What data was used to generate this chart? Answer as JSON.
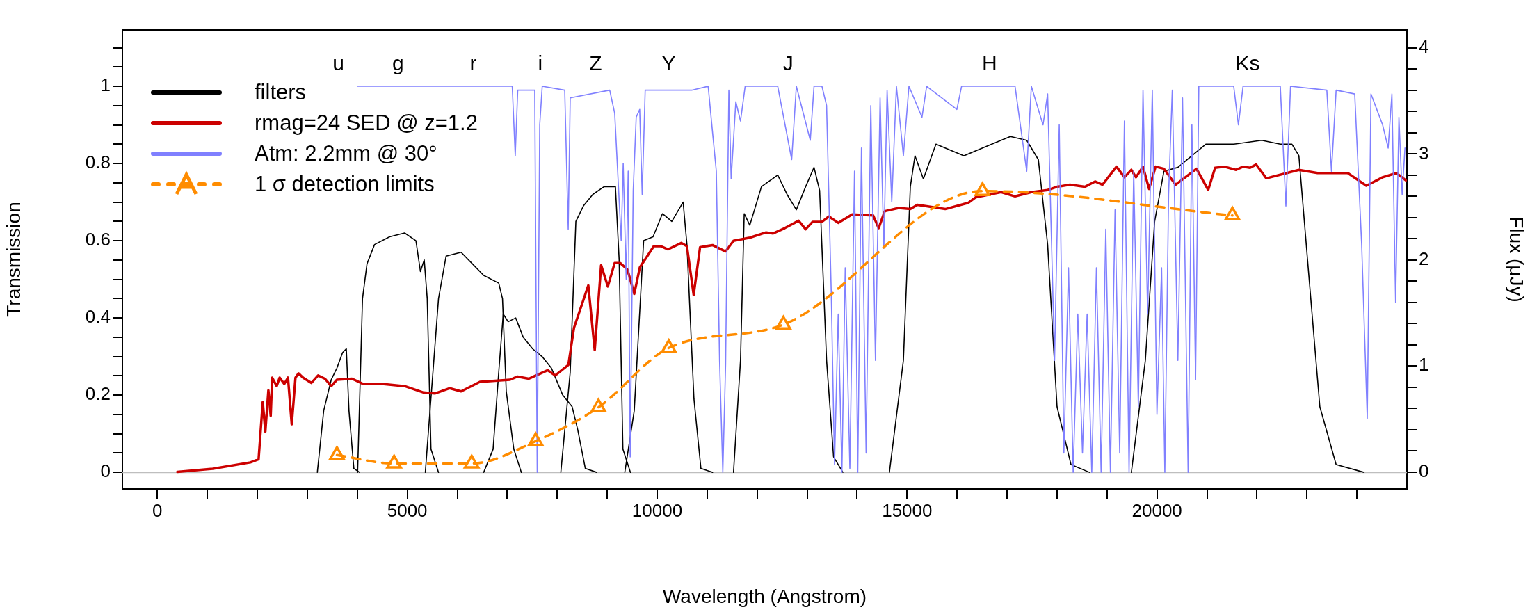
{
  "chart_data": {
    "type": "line",
    "xlabel": "Wavelength (Angstrom)",
    "ylabel": "Transmission",
    "y2label": "Flux (μJy)",
    "xlim": [
      -700,
      25000
    ],
    "xticks": [
      0,
      {
        "value": 1000,
        "label": null
      },
      {
        "value": 2000,
        "label": null
      },
      {
        "value": 3000,
        "label": null
      },
      {
        "value": 4000,
        "label": null
      },
      5000,
      {
        "value": 6000,
        "label": null
      },
      {
        "value": 7000,
        "label": null
      },
      {
        "value": 8000,
        "label": null
      },
      {
        "value": 9000,
        "label": null
      },
      10000,
      {
        "value": 11000,
        "label": null
      },
      {
        "value": 12000,
        "label": null
      },
      {
        "value": 13000,
        "label": null
      },
      {
        "value": 14000,
        "label": null
      },
      15000,
      {
        "value": 16000,
        "label": null
      },
      {
        "value": 17000,
        "label": null
      },
      {
        "value": 18000,
        "label": null
      },
      {
        "value": 19000,
        "label": null
      },
      20000,
      {
        "value": 21000,
        "label": null
      },
      {
        "value": 22000,
        "label": null
      },
      {
        "value": 23000,
        "label": null
      },
      {
        "value": 24000,
        "label": null
      }
    ],
    "ylim": [
      -0.043,
      1.146
    ],
    "yticks": [
      0,
      {
        "value": 0.05,
        "label": null
      },
      {
        "value": 0.1,
        "label": null
      },
      {
        "value": 0.15,
        "label": null
      },
      0.2,
      {
        "value": 0.25,
        "label": null
      },
      {
        "value": 0.3,
        "label": null
      },
      {
        "value": 0.35,
        "label": null
      },
      0.4,
      {
        "value": 0.45,
        "label": null
      },
      {
        "value": 0.5,
        "label": null
      },
      {
        "value": 0.55,
        "label": null
      },
      0.6,
      {
        "value": 0.65,
        "label": null
      },
      {
        "value": 0.7,
        "label": null
      },
      {
        "value": 0.75,
        "label": null
      },
      0.8,
      {
        "value": 0.85,
        "label": null
      },
      {
        "value": 0.9,
        "label": null
      },
      {
        "value": 0.95,
        "label": null
      },
      1,
      {
        "value": 1.05,
        "label": null
      },
      {
        "value": 1.1,
        "label": null
      }
    ],
    "y2lim": [
      -0.16,
      4.17
    ],
    "y2ticks": [
      0,
      {
        "value": 0.2,
        "label": null
      },
      {
        "value": 0.4,
        "label": null
      },
      {
        "value": 0.6,
        "label": null
      },
      {
        "value": 0.8,
        "label": null
      },
      1,
      {
        "value": 1.2,
        "label": null
      },
      {
        "value": 1.4,
        "label": null
      },
      {
        "value": 1.6,
        "label": null
      },
      {
        "value": 1.8,
        "label": null
      },
      2,
      {
        "value": 2.2,
        "label": null
      },
      {
        "value": 2.4,
        "label": null
      },
      {
        "value": 2.6,
        "label": null
      },
      {
        "value": 2.8,
        "label": null
      },
      3,
      {
        "value": 3.2,
        "label": null
      },
      {
        "value": 3.4,
        "label": null
      },
      {
        "value": 3.6,
        "label": null
      },
      {
        "value": 3.8,
        "label": null
      },
      4
    ],
    "grid": false,
    "legend": "top left",
    "ref_lines": [
      {
        "axis": "y",
        "value": 0,
        "color": "#bebebe"
      }
    ],
    "annotations": [
      "u",
      "g",
      "r",
      "i",
      "Z",
      "Y",
      "J",
      "H",
      "Ks"
    ],
    "series": [
      {
        "name": "filters",
        "color": "#000000",
        "marker": "none",
        "line_style": "solid",
        "x": [
          3200,
          3328,
          3479,
          3592,
          3705,
          3780,
          3833,
          3931,
          4044
        ],
        "values": [
          0,
          0.16,
          0.24,
          0.27,
          0.31,
          0.32,
          0.16,
          0.01,
          0
        ]
      },
      {
        "color": "#000000",
        "marker": "none",
        "line_style": "solid",
        "x": [
          4006,
          4104,
          4194,
          4345,
          4646,
          4947,
          5173,
          5263,
          5339,
          5399,
          5474,
          5625
        ],
        "values": [
          0,
          0.45,
          0.54,
          0.59,
          0.61,
          0.62,
          0.6,
          0.52,
          0.55,
          0.45,
          0.06,
          0
        ]
      },
      {
        "color": "#000000",
        "marker": "none",
        "line_style": "solid",
        "x": [
          5361,
          5625,
          5776,
          6077,
          6303,
          6529,
          6830,
          6905,
          6980,
          7131,
          7282
        ],
        "values": [
          0,
          0.45,
          0.56,
          0.57,
          0.54,
          0.51,
          0.49,
          0.45,
          0.21,
          0.06,
          0
        ]
      },
      {
        "color": "#000000",
        "marker": "none",
        "line_style": "solid",
        "x": [
          6529,
          6717,
          6830,
          6920,
          7018,
          7169,
          7319,
          7507,
          7696,
          7884,
          8110,
          8298,
          8411,
          8562,
          8788
        ],
        "values": [
          0,
          0.06,
          0.26,
          0.41,
          0.39,
          0.4,
          0.35,
          0.32,
          0.3,
          0.27,
          0.2,
          0.17,
          0.11,
          0.01,
          0
        ]
      },
      {
        "color": "#000000",
        "marker": "none",
        "line_style": "solid",
        "x": [
          8072,
          8260,
          8373,
          8524,
          8712,
          8938,
          9164,
          9239,
          9314,
          9465
        ],
        "values": [
          0,
          0.26,
          0.65,
          0.69,
          0.72,
          0.74,
          0.74,
          0.55,
          0.06,
          0
        ]
      },
      {
        "color": "#000000",
        "marker": "none",
        "line_style": "solid",
        "x": [
          9352,
          9541,
          9729,
          9917,
          10105,
          10293,
          10519,
          10595,
          10736,
          10875,
          11108
        ],
        "values": [
          0,
          0.16,
          0.6,
          0.61,
          0.67,
          0.65,
          0.7,
          0.59,
          0.19,
          0.01,
          0
        ]
      },
      {
        "color": "#000000",
        "marker": "none",
        "line_style": "solid",
        "x": [
          11527,
          11667,
          11741,
          11853,
          12086,
          12412,
          12598,
          12784,
          12970,
          13138,
          13250,
          13389,
          13529,
          13715
        ],
        "values": [
          0,
          0.29,
          0.67,
          0.64,
          0.74,
          0.77,
          0.72,
          0.68,
          0.74,
          0.79,
          0.73,
          0.29,
          0.04,
          0
        ]
      },
      {
        "color": "#000000",
        "marker": "none",
        "line_style": "solid",
        "x": [
          14646,
          14926,
          15065,
          15158,
          15326,
          15577,
          16136,
          16694,
          17067,
          17393,
          17626,
          17812,
          18000,
          18279,
          18649
        ],
        "values": [
          0,
          0.29,
          0.74,
          0.82,
          0.76,
          0.85,
          0.82,
          0.85,
          0.87,
          0.86,
          0.81,
          0.59,
          0.17,
          0.02,
          0
        ]
      },
      {
        "color": "#000000",
        "marker": "none",
        "line_style": "solid",
        "x": [
          19487,
          19767,
          19953,
          20139,
          20418,
          20698,
          20977,
          21535,
          22094,
          22467,
          22700,
          22839,
          23025,
          23258,
          23584,
          24142
        ],
        "values": [
          0,
          0.29,
          0.65,
          0.78,
          0.79,
          0.82,
          0.85,
          0.85,
          0.86,
          0.85,
          0.85,
          0.82,
          0.53,
          0.17,
          0.02,
          0
        ]
      },
      {
        "name": "rmag=24 SED @ z=1.2",
        "axis": "y2",
        "color": "#cc0000",
        "marker": "none",
        "line_style": "solid",
        "x": [
          400,
          1107,
          1860,
          2025,
          2108,
          2160,
          2221,
          2267,
          2297,
          2387,
          2447,
          2538,
          2613,
          2688,
          2763,
          2824,
          2914,
          3080,
          3215,
          3351,
          3479,
          3592,
          3893,
          4119,
          4495,
          4947,
          5324,
          5550,
          5851,
          6077,
          6453,
          7056,
          7206,
          7432,
          7808,
          7959,
          8223,
          8336,
          8622,
          8750,
          8878,
          9013,
          9149,
          9262,
          9405,
          9541,
          9653,
          9932,
          10067,
          10218,
          10482,
          10595,
          10730,
          10858,
          11108,
          11369,
          11527,
          11853,
          12179,
          12319,
          12551,
          12830,
          12970,
          13110,
          13296,
          13436,
          13622,
          13901,
          14320,
          14432,
          14553,
          14832,
          15065,
          15205,
          15763,
          16229,
          16369,
          16881,
          17160,
          17486,
          17812,
          18000,
          18258,
          18556,
          18761,
          18910,
          19190,
          19348,
          19487,
          19580,
          19720,
          19841,
          19972,
          20139,
          20372,
          20791,
          21024,
          21163,
          21350,
          21582,
          21722,
          21862,
          21983,
          22187,
          22839,
          23211,
          23816,
          24188,
          24514,
          24793,
          24980
        ],
        "values": [
          0,
          0.03,
          0.09,
          0.12,
          0.66,
          0.38,
          0.77,
          0.53,
          0.89,
          0.81,
          0.89,
          0.83,
          0.89,
          0.45,
          0.89,
          0.93,
          0.89,
          0.84,
          0.91,
          0.88,
          0.81,
          0.87,
          0.88,
          0.83,
          0.83,
          0.81,
          0.75,
          0.74,
          0.79,
          0.76,
          0.85,
          0.87,
          0.9,
          0.88,
          0.96,
          0.91,
          1.01,
          1.36,
          1.76,
          1.15,
          1.95,
          1.75,
          1.97,
          1.97,
          1.91,
          1.68,
          1.93,
          2.13,
          2.13,
          2.1,
          2.16,
          2.13,
          1.67,
          2.12,
          2.14,
          2.08,
          2.18,
          2.21,
          2.26,
          2.25,
          2.3,
          2.37,
          2.29,
          2.36,
          2.36,
          2.41,
          2.35,
          2.43,
          2.42,
          2.3,
          2.46,
          2.49,
          2.48,
          2.52,
          2.48,
          2.54,
          2.59,
          2.64,
          2.6,
          2.64,
          2.66,
          2.69,
          2.71,
          2.69,
          2.74,
          2.71,
          2.88,
          2.78,
          2.85,
          2.78,
          2.88,
          2.67,
          2.88,
          2.86,
          2.71,
          2.86,
          2.66,
          2.87,
          2.88,
          2.85,
          2.88,
          2.87,
          2.9,
          2.77,
          2.85,
          2.82,
          2.82,
          2.7,
          2.78,
          2.82,
          2.75
        ]
      },
      {
        "name": "Atm: 2.2mm @ 30°",
        "color": "#8080ff",
        "marker": "none",
        "line_style": "solid",
        "x": [
          4000,
          7100,
          7160,
          7210,
          7550,
          7600,
          7650,
          7700,
          8150,
          8220,
          8260,
          9050,
          9150,
          9280,
          9320,
          9380,
          9420,
          9460,
          9520,
          9580,
          9650,
          9700,
          9760,
          10700,
          11020,
          11108,
          11183,
          11248,
          11313,
          11369,
          11434,
          11480,
          11573,
          11667,
          11760,
          12412,
          12691,
          12784,
          13063,
          13138,
          13296,
          13389,
          13482,
          13548,
          13622,
          13696,
          13762,
          13855,
          13948,
          14013,
          14087,
          14180,
          14274,
          14367,
          14460,
          14535,
          14600,
          14693,
          14786,
          14926,
          15037,
          15298,
          15391,
          15996,
          16090,
          17160,
          17393,
          17486,
          17719,
          17812,
          17951,
          18044,
          18137,
          18230,
          18323,
          18416,
          18509,
          18602,
          18695,
          18788,
          18882,
          18975,
          19068,
          19161,
          19254,
          19348,
          19441,
          19534,
          19627,
          19720,
          19813,
          19906,
          19999,
          20092,
          20157,
          20232,
          20306,
          20418,
          20511,
          20623,
          20698,
          20772,
          20837,
          21535,
          21629,
          21722,
          22467,
          22579,
          22672,
          23398,
          23491,
          23584,
          23956,
          24095,
          24207,
          24281,
          24514,
          24625,
          24700,
          24774,
          24840,
          24905,
          24961
        ],
        "values": [
          1,
          1,
          0.82,
          0.99,
          0.99,
          0,
          0.9,
          1,
          0.99,
          0.63,
          0.97,
          0.99,
          0.93,
          0.6,
          0.8,
          0.5,
          0.78,
          0.04,
          0.73,
          0.92,
          0.94,
          0.72,
          0.99,
          0.99,
          1,
          0.88,
          0.78,
          0.29,
          0,
          0.28,
          0.99,
          0.76,
          0.96,
          0.91,
          1,
          1,
          0.81,
          1,
          0.86,
          1,
          1,
          0.95,
          0.47,
          0.02,
          0.41,
          0,
          0.53,
          0.01,
          0.78,
          0,
          0.84,
          0.05,
          0.95,
          0.29,
          0.97,
          0.58,
          0.99,
          0.7,
          1,
          0.82,
          1,
          0.92,
          1,
          0.94,
          1,
          1,
          0.78,
          1,
          0.9,
          0.98,
          0.29,
          0.9,
          0.05,
          0.53,
          0,
          0.41,
          0.05,
          0.41,
          0,
          0.53,
          0,
          0.63,
          0,
          0.68,
          0.05,
          0.91,
          0,
          0.78,
          0.17,
          0.99,
          0.41,
          0.99,
          0.15,
          0.53,
          0,
          0.72,
          0.99,
          0.29,
          0.97,
          0,
          0.9,
          0.24,
          1,
          1,
          0.9,
          1,
          1,
          0.69,
          1,
          0.99,
          0.78,
          0.99,
          0.98,
          0.59,
          0.14,
          0.98,
          0.9,
          0.84,
          0.98,
          0.44,
          0.92,
          0.72,
          0.84
        ]
      },
      {
        "name": "1 σ detection limits",
        "axis": "y2",
        "color": "#ff8c00",
        "marker": "triangle",
        "line_style": "dashed",
        "x": [
          3592,
          4736,
          6288,
          7568,
          8825,
          10233,
          12524,
          16508,
          21508
        ],
        "values": [
          0.16,
          0.08,
          0.08,
          0.29,
          0.61,
          1.17,
          1.39,
          2.65,
          2.42
        ]
      }
    ]
  }
}
